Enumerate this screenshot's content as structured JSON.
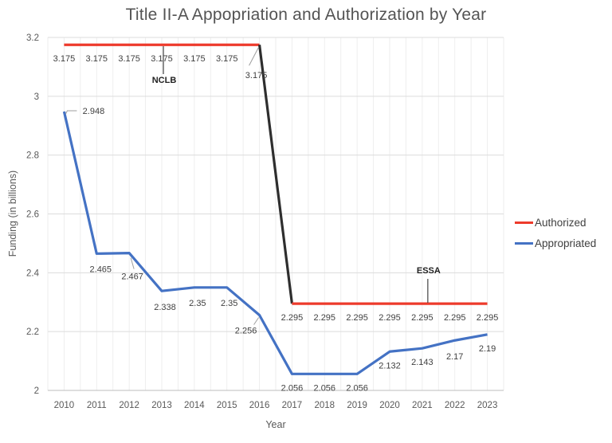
{
  "chart_data": {
    "type": "line",
    "title": "Title II-A Appopriation and Authorization by Year",
    "xlabel": "Year",
    "ylabel": "Funding (in billions)",
    "x": [
      2010,
      2011,
      2012,
      2013,
      2014,
      2015,
      2016,
      2017,
      2018,
      2019,
      2020,
      2021,
      2022,
      2023
    ],
    "ylim": [
      2,
      3.2
    ],
    "yticks": [
      3.2,
      3,
      2.8,
      2.6,
      2.4,
      2.2,
      2
    ],
    "grid": true,
    "legend_position": "right",
    "data_labels": true,
    "series": [
      {
        "name": "Authorized",
        "color": "#ed3a2b",
        "transition_color": "#2e2e2e",
        "values": [
          3.175,
          3.175,
          3.175,
          3.175,
          3.175,
          3.175,
          3.175,
          2.295,
          2.295,
          2.295,
          2.295,
          2.295,
          2.295,
          2.295
        ]
      },
      {
        "name": "Appropriated",
        "color": "#4472c4",
        "values": [
          2.948,
          2.465,
          2.467,
          2.338,
          2.35,
          2.35,
          2.256,
          2.056,
          2.056,
          2.056,
          2.132,
          2.143,
          2.17,
          2.19
        ]
      }
    ],
    "annotations": [
      {
        "text": "NCLB",
        "year": 2013
      },
      {
        "text": "ESSA",
        "year": 2021
      }
    ]
  },
  "colors": {
    "grid_vertical": "#eeeeee",
    "grid_horizontal": "#dcdcdc",
    "axis_line": "#bdbdbd",
    "tick_label": "#595959",
    "data_label": "#3f3f3f",
    "title": "#545454",
    "annotation_text": "#1f1f1f",
    "annotation_line": "#404040",
    "leader_line": "#9e9e9e"
  }
}
